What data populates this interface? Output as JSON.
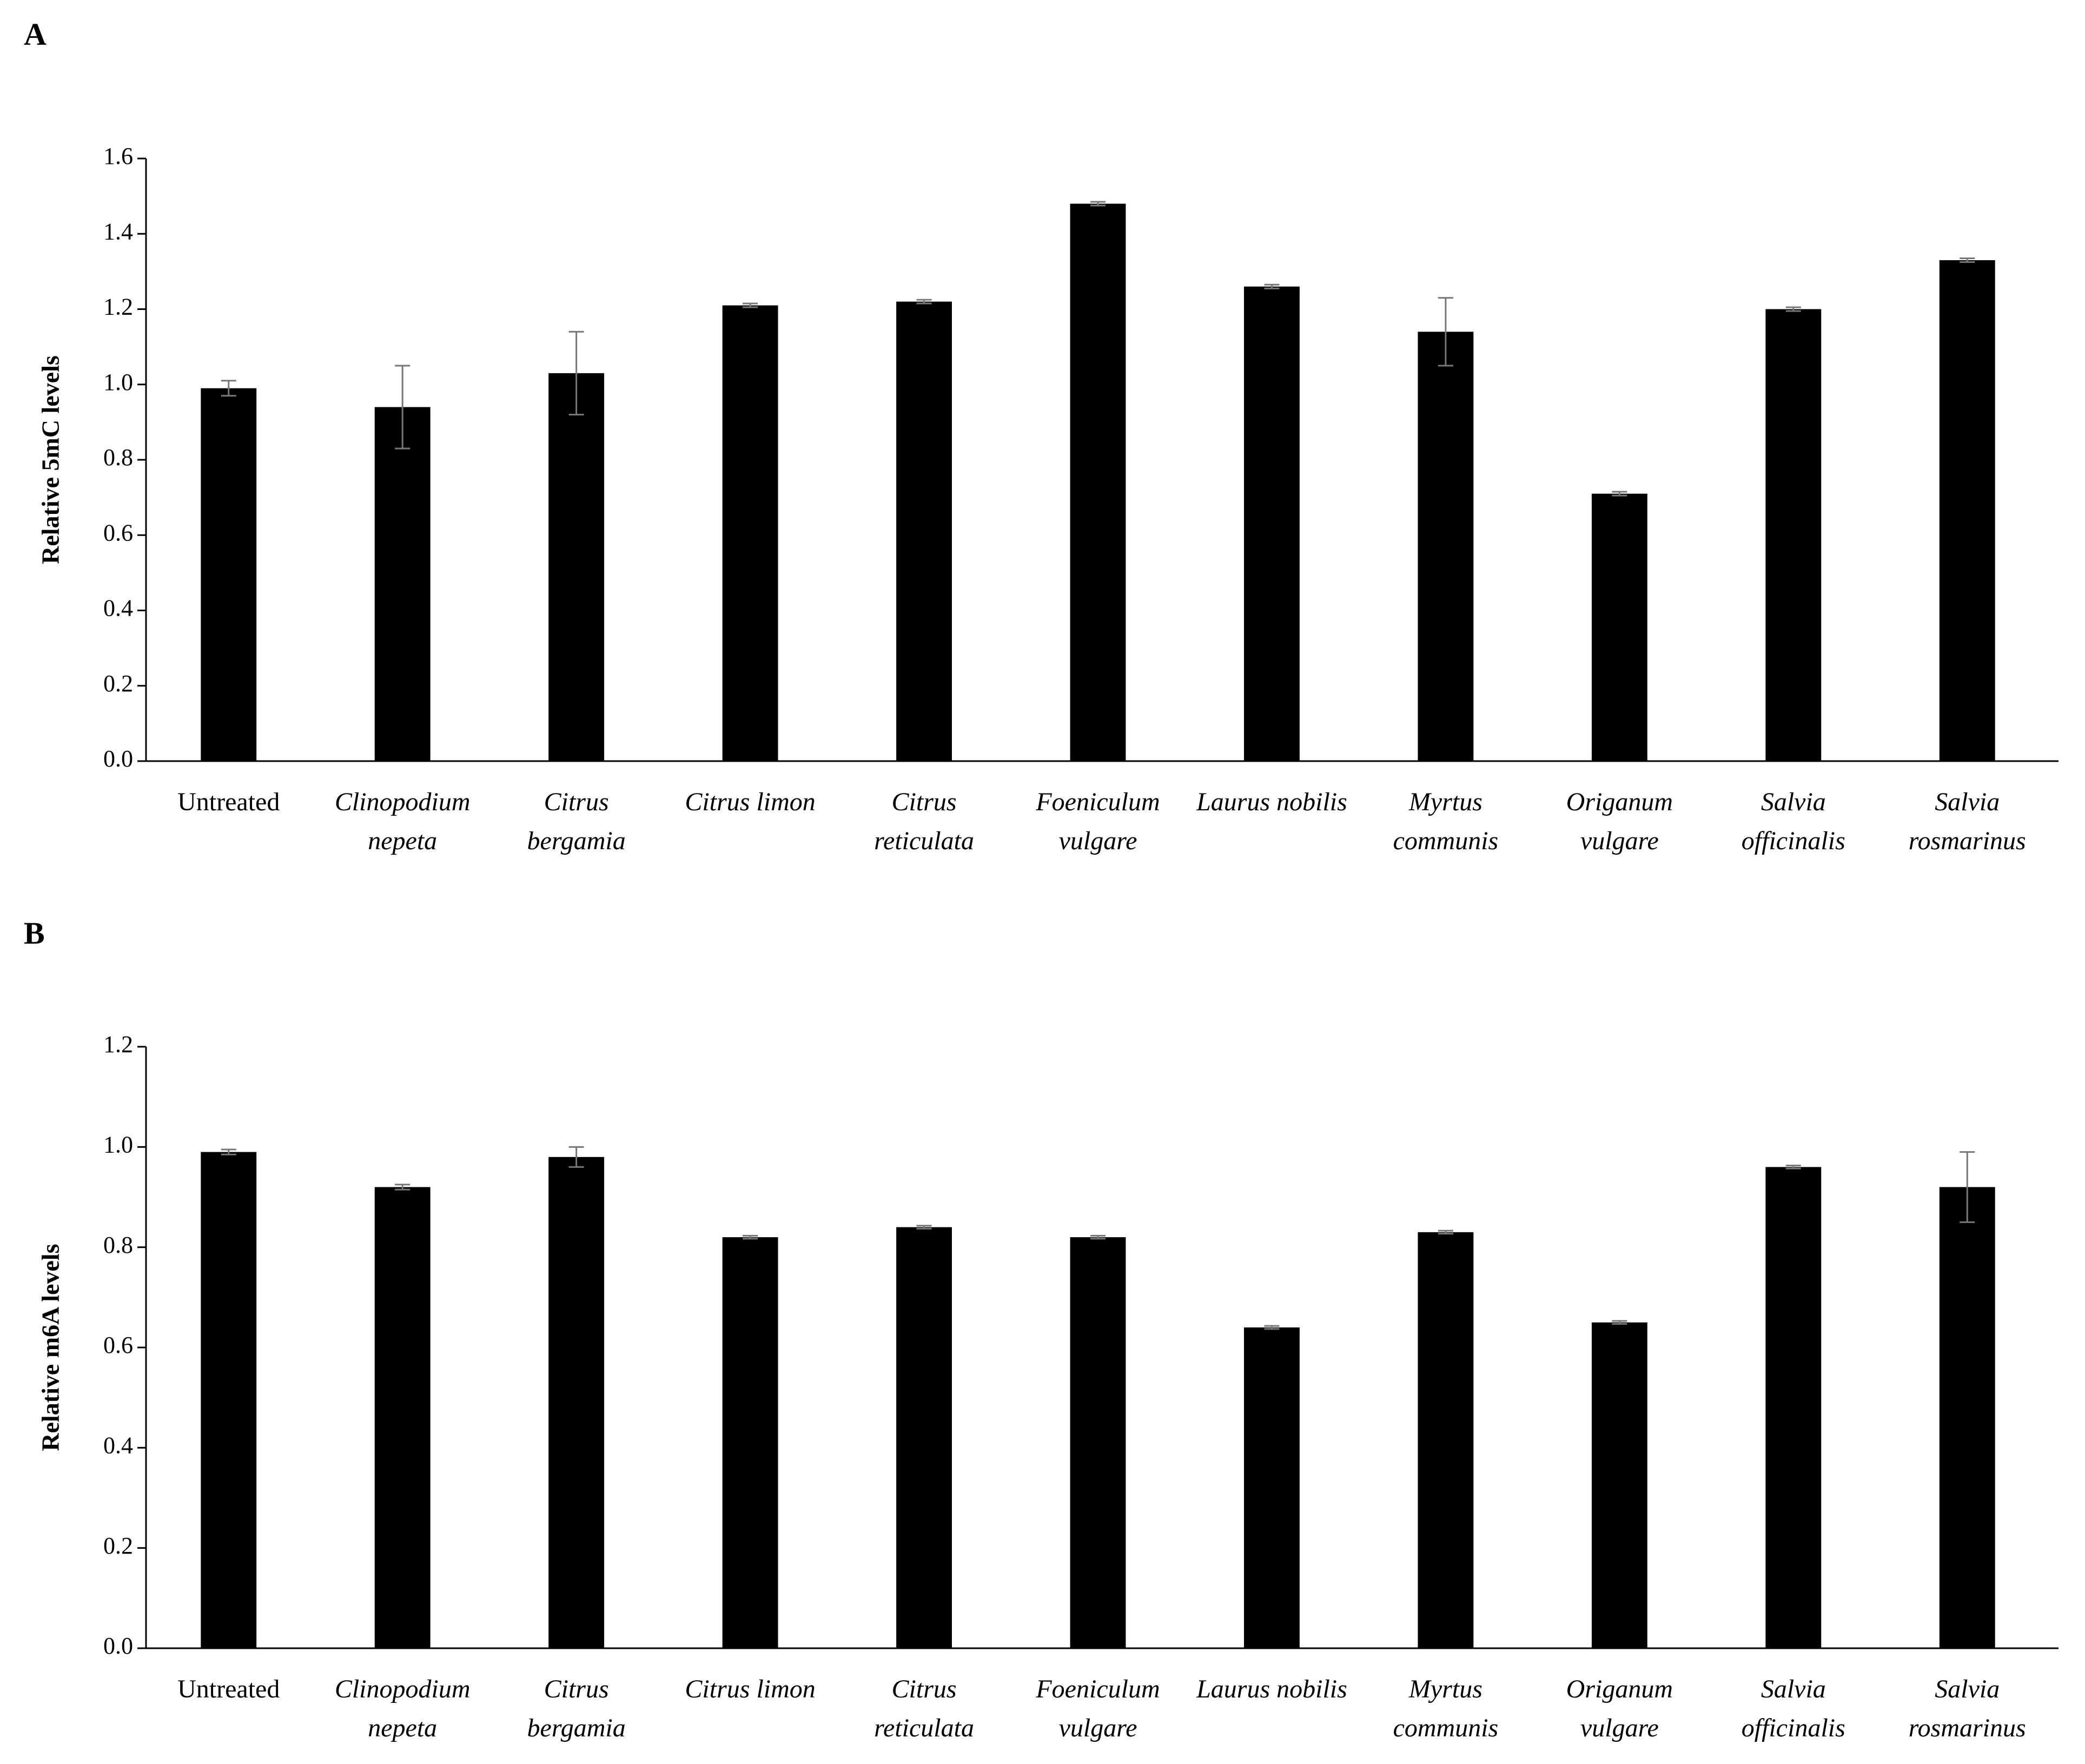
{
  "chart_data": [
    {
      "type": "bar",
      "panel": "A",
      "ylabel": "Relative 5mC levels",
      "categories": [
        "Untreated",
        "Clinopodium\nnepeta",
        "Citrus\nbergamia",
        "Citrus limon",
        "Citrus\nreticulata",
        "Foeniculum\nvulgare",
        "Laurus nobilis",
        "Myrtus\ncommunis",
        "Origanum\nvulgare",
        "Salvia\nofficinalis",
        "Salvia\nrosmarinus"
      ],
      "values": [
        0.99,
        0.94,
        1.03,
        1.21,
        1.22,
        1.48,
        1.26,
        1.14,
        0.71,
        1.2,
        1.33
      ],
      "errors": [
        0.02,
        0.11,
        0.11,
        0.005,
        0.005,
        0.005,
        0.005,
        0.09,
        0.005,
        0.005,
        0.005
      ],
      "color": "#000000",
      "error_color": "#777777",
      "ylim": [
        0,
        1.6
      ],
      "yticks": [
        {
          "value": 0,
          "label": "0.0"
        },
        0.2,
        0.4,
        0.6,
        0.8,
        {
          "value": 1,
          "label": "1.0"
        },
        1.2,
        1.4,
        1.6
      ]
    },
    {
      "type": "bar",
      "panel": "B",
      "ylabel": "Relative m6A levels",
      "categories": [
        "Untreated",
        "Clinopodium\nnepeta",
        "Citrus\nbergamia",
        "Citrus limon",
        "Citrus\nreticulata",
        "Foeniculum\nvulgare",
        "Laurus nobilis",
        "Myrtus\ncommunis",
        "Origanum\nvulgare",
        "Salvia\nofficinalis",
        "Salvia\nrosmarinus"
      ],
      "values": [
        0.99,
        0.92,
        0.98,
        0.82,
        0.84,
        0.82,
        0.64,
        0.83,
        0.65,
        0.96,
        0.92
      ],
      "errors": [
        0.005,
        0.005,
        0.02,
        0.003,
        0.003,
        0.003,
        0.003,
        0.003,
        0.003,
        0.003,
        0.07
      ],
      "color": "#000000",
      "error_color": "#777777",
      "ylim": [
        0,
        1.2
      ],
      "yticks": [
        {
          "value": 0,
          "label": "0.0"
        },
        0.2,
        0.4,
        0.6,
        0.8,
        {
          "value": 1,
          "label": "1.0"
        },
        1.2
      ]
    }
  ]
}
